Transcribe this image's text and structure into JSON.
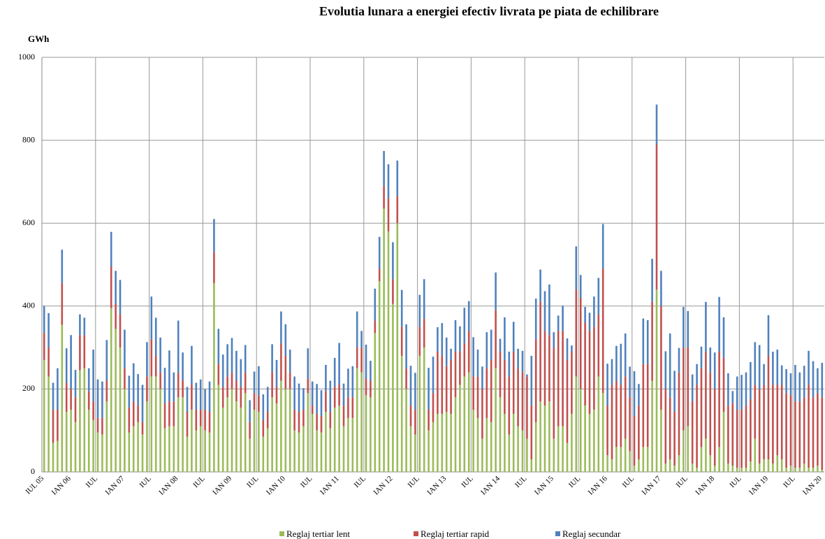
{
  "chart_data": {
    "type": "stacked_bar",
    "title": "Evolutia lunara a energiei efectiv livrata pe piata de echilibrare",
    "y_label": "GWh",
    "ylim": [
      0,
      1000
    ],
    "yticks": [
      0,
      200,
      400,
      600,
      800,
      1000
    ],
    "grid": true,
    "legend": "bottom",
    "categories": [
      "IUL 05",
      null,
      null,
      null,
      null,
      null,
      "IAN 06",
      null,
      null,
      null,
      null,
      null,
      "IUL",
      null,
      null,
      null,
      null,
      null,
      "IAN 07",
      null,
      null,
      null,
      null,
      null,
      "IUL",
      null,
      null,
      null,
      null,
      null,
      "IAN 08",
      null,
      null,
      null,
      null,
      null,
      "IUL",
      null,
      null,
      null,
      null,
      null,
      "IAN 09",
      null,
      null,
      null,
      null,
      null,
      "IUL",
      null,
      null,
      null,
      null,
      null,
      "IAN 10",
      null,
      null,
      null,
      null,
      null,
      "IUL",
      null,
      null,
      null,
      null,
      null,
      "IAN 11",
      null,
      null,
      null,
      null,
      null,
      "IUL",
      null,
      null,
      null,
      null,
      null,
      "IAN 12",
      null,
      null,
      null,
      null,
      null,
      "IUL",
      null,
      null,
      null,
      null,
      null,
      "IAN 13",
      null,
      null,
      null,
      null,
      null,
      "IUL",
      null,
      null,
      null,
      null,
      null,
      "IAN 14",
      null,
      null,
      null,
      null,
      null,
      "IUL",
      null,
      null,
      null,
      null,
      null,
      "IAN 15",
      null,
      null,
      null,
      null,
      null,
      "IUL",
      null,
      null,
      null,
      null,
      null,
      "IAN 16",
      null,
      null,
      null,
      null,
      null,
      "IUL",
      null,
      null,
      null,
      null,
      null,
      "IAN 17",
      null,
      null,
      null,
      null,
      null,
      "IUL",
      null,
      null,
      null,
      null,
      null,
      "IAN 18",
      null,
      null,
      null,
      null,
      null,
      "IUL",
      null,
      null,
      null,
      null,
      null,
      "IAN 19",
      null,
      null,
      null,
      null,
      null,
      "IUL",
      null,
      null,
      null,
      null,
      null,
      "IAN 20"
    ],
    "series": [
      {
        "name": "Reglaj tertiar lent",
        "color": "#9bbb59",
        "values": [
          270,
          230,
          70,
          75,
          355,
          145,
          150,
          120,
          245,
          250,
          150,
          125,
          95,
          90,
          170,
          395,
          345,
          300,
          200,
          95,
          110,
          120,
          90,
          170,
          230,
          230,
          200,
          105,
          110,
          110,
          180,
          180,
          85,
          150,
          100,
          110,
          100,
          95,
          455,
          210,
          155,
          180,
          200,
          170,
          155,
          190,
          80,
          150,
          145,
          85,
          105,
          180,
          165,
          220,
          200,
          200,
          100,
          95,
          110,
          190,
          140,
          100,
          95,
          145,
          105,
          155,
          160,
          110,
          130,
          130,
          250,
          240,
          185,
          180,
          335,
          460,
          635,
          580,
          405,
          600,
          280,
          200,
          110,
          90,
          280,
          300,
          100,
          120,
          140,
          140,
          145,
          140,
          180,
          210,
          230,
          240,
          150,
          130,
          80,
          130,
          120,
          250,
          180,
          140,
          90,
          140,
          110,
          100,
          80,
          30,
          120,
          170,
          160,
          170,
          80,
          110,
          110,
          70,
          140,
          230,
          200,
          160,
          140,
          150,
          230,
          190,
          40,
          30,
          60,
          60,
          80,
          50,
          15,
          30,
          60,
          60,
          220,
          440,
          150,
          20,
          30,
          15,
          40,
          100,
          110,
          20,
          10,
          60,
          80,
          40,
          15,
          60,
          145,
          20,
          15,
          10,
          10,
          10,
          25,
          80,
          20,
          30,
          30,
          20,
          40,
          30,
          10,
          15,
          10,
          10,
          20,
          10,
          10,
          15,
          5
        ]
      },
      {
        "name": "Reglaj tertiar rapid",
        "color": "#c0504d",
        "values": [
          65,
          70,
          80,
          75,
          100,
          70,
          50,
          60,
          85,
          80,
          45,
          45,
          35,
          40,
          50,
          100,
          60,
          80,
          50,
          60,
          60,
          40,
          30,
          60,
          90,
          50,
          40,
          60,
          60,
          60,
          60,
          40,
          60,
          60,
          50,
          40,
          50,
          50,
          75,
          50,
          50,
          50,
          40,
          50,
          50,
          50,
          40,
          40,
          40,
          40,
          40,
          60,
          40,
          90,
          80,
          40,
          50,
          50,
          40,
          35,
          20,
          40,
          40,
          50,
          40,
          50,
          50,
          50,
          50,
          50,
          50,
          60,
          40,
          40,
          30,
          30,
          55,
          80,
          60,
          65,
          70,
          50,
          50,
          60,
          70,
          70,
          50,
          70,
          150,
          140,
          110,
          130,
          110,
          80,
          80,
          100,
          80,
          100,
          120,
          120,
          150,
          140,
          110,
          130,
          140,
          150,
          140,
          140,
          150,
          130,
          200,
          240,
          180,
          160,
          220,
          230,
          230,
          200,
          150,
          210,
          220,
          200,
          200,
          200,
          150,
          300,
          120,
          180,
          160,
          150,
          150,
          130,
          120,
          130,
          200,
          200,
          190,
          350,
          250,
          180,
          150,
          130,
          200,
          200,
          190,
          150,
          200,
          190,
          210,
          200,
          185,
          230,
          130,
          140,
          150,
          140,
          140,
          150,
          150,
          130,
          180,
          180,
          250,
          190,
          170,
          180,
          180,
          170,
          160,
          160,
          160,
          200,
          170,
          175,
          175
        ]
      },
      {
        "name": "Reglaj secundar",
        "color": "#4f81bd",
        "values": [
          65,
          83,
          65,
          100,
          81,
          83,
          130,
          66,
          50,
          42,
          55,
          125,
          93,
          88,
          98,
          84,
          80,
          83,
          93,
          77,
          92,
          76,
          90,
          83,
          103,
          92,
          84,
          86,
          123,
          70,
          125,
          68,
          60,
          94,
          65,
          73,
          50,
          73,
          80,
          85,
          78,
          78,
          83,
          72,
          67,
          66,
          53,
          52,
          70,
          62,
          60,
          68,
          65,
          77,
          76,
          55,
          80,
          68,
          52,
          73,
          58,
          72,
          62,
          63,
          75,
          70,
          101,
          53,
          69,
          75,
          87,
          40,
          82,
          48,
          77,
          77,
          84,
          82,
          89,
          86,
          89,
          106,
          96,
          89,
          77,
          95,
          101,
          88,
          59,
          79,
          69,
          27,
          76,
          61,
          86,
          72,
          95,
          65,
          54,
          87,
          73,
          91,
          31,
          103,
          60,
          72,
          47,
          52,
          5,
          120,
          98,
          78,
          96,
          122,
          37,
          37,
          61,
          52,
          15,
          104,
          55,
          38,
          44,
          73,
          88,
          108,
          101,
          62,
          84,
          99,
          104,
          74,
          108,
          52,
          110,
          106,
          104,
          96,
          85,
          91,
          154,
          99,
          59,
          98,
          88,
          65,
          50,
          52,
          120,
          60,
          88,
          132,
          98,
          78,
          30,
          80,
          84,
          80,
          90,
          103,
          106,
          50,
          98,
          80,
          85,
          47,
          58,
          53,
          88,
          70,
          76,
          82,
          87,
          60,
          83
        ]
      }
    ]
  }
}
